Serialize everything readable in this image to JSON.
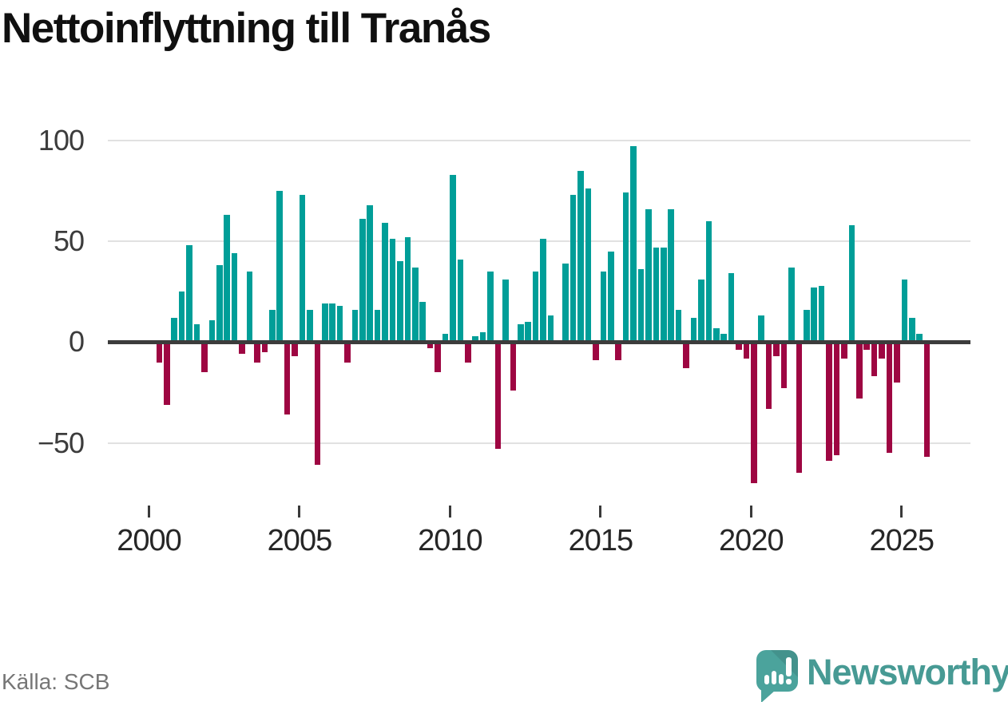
{
  "title": "Nettoinflyttning till Tranås",
  "source": "Källa: SCB",
  "logo": {
    "brand": "Newsworthy"
  },
  "chart_data": {
    "type": "bar",
    "title": "Nettoinflyttning till Tranås",
    "x": [
      "2000Q1",
      "2000Q2",
      "2000Q3",
      "2000Q4",
      "2001Q1",
      "2001Q2",
      "2001Q3",
      "2001Q4",
      "2002Q1",
      "2002Q2",
      "2002Q3",
      "2002Q4",
      "2003Q1",
      "2003Q2",
      "2003Q3",
      "2003Q4",
      "2004Q1",
      "2004Q2",
      "2004Q3",
      "2004Q4",
      "2005Q1",
      "2005Q2",
      "2005Q3",
      "2005Q4",
      "2006Q1",
      "2006Q2",
      "2006Q3",
      "2006Q4",
      "2007Q1",
      "2007Q2",
      "2007Q3",
      "2007Q4",
      "2008Q1",
      "2008Q2",
      "2008Q3",
      "2008Q4",
      "2009Q1",
      "2009Q2",
      "2009Q3",
      "2009Q4",
      "2010Q1",
      "2010Q2",
      "2010Q3",
      "2010Q4",
      "2011Q1",
      "2011Q2",
      "2011Q3",
      "2011Q4",
      "2012Q1",
      "2012Q2",
      "2012Q3",
      "2012Q4",
      "2013Q1",
      "2013Q2",
      "2013Q3",
      "2013Q4",
      "2014Q1",
      "2014Q2",
      "2014Q3",
      "2014Q4",
      "2015Q1",
      "2015Q2",
      "2015Q3",
      "2015Q4",
      "2016Q1",
      "2016Q2",
      "2016Q3",
      "2016Q4",
      "2017Q1",
      "2017Q2",
      "2017Q3",
      "2017Q4",
      "2018Q1",
      "2018Q2",
      "2018Q3",
      "2018Q4",
      "2019Q1",
      "2019Q2",
      "2019Q3",
      "2019Q4",
      "2020Q1",
      "2020Q2",
      "2020Q3",
      "2020Q4",
      "2021Q1",
      "2021Q2",
      "2021Q3",
      "2021Q4",
      "2022Q1",
      "2022Q2",
      "2022Q3",
      "2022Q4",
      "2023Q1",
      "2023Q2",
      "2023Q3",
      "2023Q4",
      "2024Q1",
      "2024Q2",
      "2024Q3",
      "2024Q4",
      "2025Q1",
      "2025Q2",
      "2025Q3",
      "2025Q4"
    ],
    "values": [
      1,
      -10,
      -31,
      12,
      25,
      48,
      9,
      -15,
      11,
      38,
      63,
      44,
      -6,
      35,
      -10,
      -5,
      16,
      75,
      -36,
      -7,
      73,
      16,
      -61,
      19,
      19,
      18,
      -10,
      16,
      61,
      68,
      16,
      59,
      51,
      40,
      52,
      37,
      20,
      -3,
      -15,
      4,
      83,
      41,
      -10,
      3,
      5,
      35,
      -53,
      31,
      -24,
      9,
      10,
      35,
      51,
      13,
      1,
      39,
      73,
      85,
      76,
      -9,
      35,
      45,
      -9,
      74,
      97,
      36,
      66,
      47,
      47,
      66,
      16,
      -13,
      12,
      31,
      60,
      7,
      4,
      34,
      -4,
      -8,
      -70,
      13,
      -33,
      -7,
      -23,
      37,
      -65,
      16,
      27,
      28,
      -59,
      -56,
      -8,
      58,
      -28,
      -4,
      -17,
      -8,
      -55,
      -20,
      31,
      12,
      4,
      -57
    ],
    "yticks": [
      100,
      50,
      0,
      -50
    ],
    "ytick_labels": [
      "100",
      "50",
      "0",
      "−50"
    ],
    "xticks": [
      2000,
      2005,
      2010,
      2015,
      2020,
      2025
    ],
    "ylim": [
      -80,
      110
    ],
    "grid": "horizontal",
    "legend": "none",
    "colors": {
      "positive": "#009e98",
      "negative": "#9e0642"
    }
  }
}
